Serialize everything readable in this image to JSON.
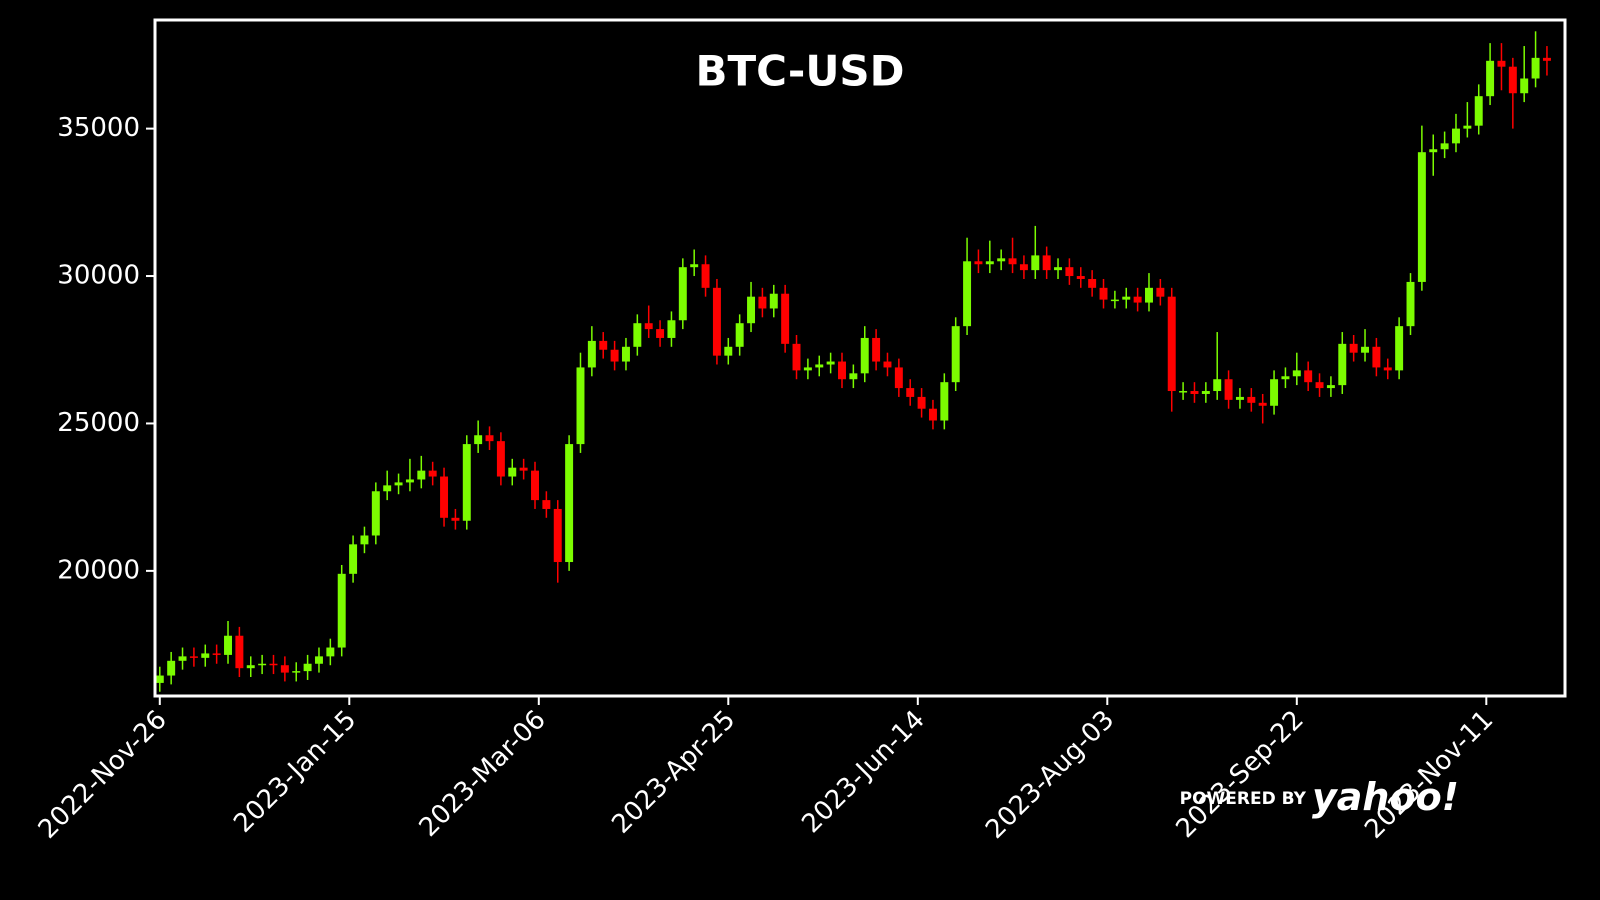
{
  "chart_data": {
    "type": "candlestick",
    "title": "BTC-USD",
    "watermark": {
      "prefix": "POWERED BY",
      "brand": "yahoo!"
    },
    "up_color": "#7cfc00",
    "down_color": "#ff0000",
    "x": [
      0,
      3,
      6,
      9,
      12,
      15,
      18,
      21,
      24,
      27,
      30,
      33,
      36,
      39,
      42,
      45,
      48,
      51,
      54,
      57,
      60,
      63,
      66,
      69,
      72,
      75,
      78,
      81,
      84,
      87,
      90,
      93,
      96,
      99,
      102,
      105,
      108,
      111,
      114,
      117,
      120,
      123,
      126,
      129,
      132,
      135,
      138,
      141,
      144,
      147,
      150,
      153,
      156,
      159,
      162,
      165,
      168,
      171,
      174,
      177,
      180,
      183,
      186,
      189,
      192,
      195,
      198,
      201,
      204,
      207,
      210,
      213,
      216,
      219,
      222,
      225,
      228,
      231,
      234,
      237,
      240,
      243,
      246,
      249,
      252,
      255,
      258,
      261,
      264,
      267,
      270,
      273,
      276,
      279,
      282,
      285,
      288,
      291,
      294,
      297,
      300,
      303,
      306,
      309,
      312,
      315,
      318,
      321,
      324,
      327,
      330,
      333,
      336,
      339,
      342,
      345,
      348,
      351,
      354,
      357,
      360,
      363,
      366
    ],
    "open": [
      16200,
      16450,
      16950,
      17100,
      17050,
      17200,
      17150,
      17800,
      16700,
      16800,
      16850,
      16800,
      16550,
      16600,
      16850,
      17100,
      17400,
      19900,
      20900,
      21200,
      22700,
      22900,
      23000,
      23100,
      23400,
      23200,
      21800,
      21700,
      24300,
      24600,
      24400,
      23200,
      23500,
      23400,
      22400,
      22100,
      20300,
      24300,
      26900,
      27800,
      27500,
      27100,
      27600,
      28400,
      28200,
      27900,
      28500,
      30300,
      30400,
      29600,
      27300,
      27600,
      28400,
      29300,
      28900,
      29400,
      27700,
      26800,
      26900,
      27000,
      27100,
      26500,
      26700,
      27900,
      27100,
      26900,
      26200,
      25900,
      25500,
      25100,
      26400,
      28300,
      30500,
      30400,
      30500,
      30600,
      30400,
      30200,
      30700,
      30200,
      30300,
      30000,
      29900,
      29600,
      29200,
      29200,
      29300,
      29100,
      29600,
      29300,
      26100,
      26100,
      26000,
      26100,
      26500,
      25800,
      25900,
      25700,
      25600,
      26500,
      26600,
      26800,
      26400,
      26200,
      26300,
      27700,
      27400,
      27600,
      26900,
      26800,
      28300,
      29800,
      34200,
      34300,
      34500,
      35000,
      35100,
      36100,
      37300,
      37100,
      36200,
      36700,
      37400
    ],
    "high": [
      16750,
      17250,
      17400,
      17400,
      17500,
      17500,
      18300,
      18100,
      17100,
      17150,
      17150,
      17100,
      16900,
      17150,
      17400,
      17700,
      20200,
      21200,
      21500,
      23000,
      23400,
      23300,
      23800,
      23900,
      23700,
      23500,
      22100,
      24600,
      25100,
      24900,
      24700,
      23800,
      23800,
      23700,
      22700,
      22400,
      24600,
      27400,
      28300,
      28100,
      27800,
      27900,
      28700,
      29000,
      28500,
      28800,
      30600,
      30900,
      30700,
      29900,
      27900,
      28700,
      29800,
      29600,
      29700,
      29700,
      28000,
      27200,
      27300,
      27400,
      27400,
      27000,
      28300,
      28200,
      27400,
      27200,
      26500,
      26200,
      25800,
      26700,
      28600,
      31300,
      30900,
      31200,
      30900,
      31300,
      30700,
      31700,
      31000,
      30600,
      30600,
      30300,
      30200,
      29900,
      29500,
      29600,
      29600,
      30100,
      29900,
      29600,
      26400,
      26400,
      26400,
      28100,
      26800,
      26200,
      26200,
      26000,
      26800,
      26900,
      27400,
      27100,
      26700,
      26600,
      28100,
      28000,
      28200,
      27900,
      27200,
      28600,
      30100,
      35100,
      34800,
      34900,
      35500,
      35900,
      36500,
      37900,
      37900,
      37400,
      37800,
      38300,
      37800
    ],
    "low": [
      15900,
      16150,
      16650,
      16750,
      16750,
      16850,
      16850,
      16400,
      16400,
      16500,
      16500,
      16250,
      16250,
      16300,
      16550,
      16800,
      17100,
      19600,
      20600,
      20900,
      22400,
      22600,
      22700,
      22800,
      22900,
      21500,
      21400,
      21400,
      24000,
      24100,
      22900,
      22900,
      23100,
      22100,
      21800,
      19600,
      20000,
      24000,
      26600,
      27200,
      26800,
      26800,
      27300,
      27900,
      27600,
      27600,
      28200,
      30000,
      29300,
      27000,
      27000,
      27300,
      28100,
      28600,
      28600,
      27400,
      26500,
      26500,
      26600,
      26700,
      26200,
      26200,
      26400,
      26800,
      26600,
      25900,
      25600,
      25200,
      24800,
      24800,
      26100,
      28000,
      30100,
      30100,
      30200,
      30100,
      29900,
      29900,
      29900,
      29900,
      29700,
      29600,
      29300,
      28900,
      28900,
      28900,
      28800,
      28800,
      29000,
      25400,
      25800,
      25700,
      25700,
      25800,
      25500,
      25500,
      25400,
      25000,
      25300,
      26200,
      26300,
      26100,
      25900,
      25900,
      26000,
      27100,
      27100,
      26600,
      26500,
      26500,
      28000,
      29500,
      33400,
      34000,
      34200,
      34700,
      34800,
      35800,
      36300,
      35000,
      35900,
      36400,
      36800
    ],
    "close": [
      16450,
      16950,
      17100,
      17050,
      17200,
      17150,
      17800,
      16700,
      16800,
      16850,
      16800,
      16550,
      16600,
      16850,
      17100,
      17400,
      19900,
      20900,
      21200,
      22700,
      22900,
      23000,
      23100,
      23400,
      23200,
      21800,
      21700,
      24300,
      24600,
      24400,
      23200,
      23500,
      23400,
      22400,
      22100,
      20300,
      24300,
      26900,
      27800,
      27500,
      27100,
      27600,
      28400,
      28200,
      27900,
      28500,
      30300,
      30400,
      29600,
      27300,
      27600,
      28400,
      29300,
      28900,
      29400,
      27700,
      26800,
      26900,
      27000,
      27100,
      26500,
      26700,
      27900,
      27100,
      26900,
      26200,
      25900,
      25500,
      25100,
      26400,
      28300,
      30500,
      30400,
      30500,
      30600,
      30400,
      30200,
      30700,
      30200,
      30300,
      30000,
      29900,
      29600,
      29200,
      29200,
      29300,
      29100,
      29600,
      29300,
      26100,
      26100,
      26000,
      26100,
      26500,
      25800,
      25900,
      25700,
      25600,
      26500,
      26600,
      26800,
      26400,
      26200,
      26300,
      27700,
      27400,
      27600,
      26900,
      26800,
      28300,
      29800,
      34200,
      34300,
      34500,
      35000,
      35100,
      36100,
      37300,
      37100,
      36200,
      36700,
      37400,
      37300
    ],
    "xlim": [
      -1,
      370.5
    ],
    "ylim": [
      15790,
      38650
    ],
    "xticks": [
      {
        "value": 0,
        "label": "2022-Nov-26"
      },
      {
        "value": 50,
        "label": "2023-Jan-15"
      },
      {
        "value": 100,
        "label": "2023-Mar-06"
      },
      {
        "value": 150,
        "label": "2023-Apr-25"
      },
      {
        "value": 200,
        "label": "2023-Jun-14"
      },
      {
        "value": 250,
        "label": "2023-Aug-03"
      },
      {
        "value": 300,
        "label": "2023-Sep-22"
      },
      {
        "value": 350,
        "label": "2023-Nov-11"
      }
    ],
    "yticks": [
      20000,
      25000,
      30000,
      35000
    ]
  }
}
